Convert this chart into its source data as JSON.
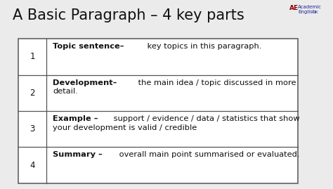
{
  "title": "A Basic Paragraph – 4 key parts",
  "title_fontsize": 15,
  "background_color": "#ebebeb",
  "table_bg": "#ffffff",
  "border_color": "#555555",
  "text_color": "#111111",
  "rows": [
    {
      "num": "1",
      "bold_part": "Topic sentence",
      "dash": "–",
      "rest": " key topics in this paragraph.",
      "rest2": ""
    },
    {
      "num": "2",
      "bold_part": "Development",
      "dash": "–",
      "rest": " the main idea / topic discussed in more",
      "rest2": "detail."
    },
    {
      "num": "3",
      "bold_part": "Example",
      "dash": " –",
      "rest": " support / evidence / data / statistics that show",
      "rest2": "your development is valid / credible"
    },
    {
      "num": "4",
      "bold_part": "Summary",
      "dash": " –",
      "rest": " overall main point summarised or evaluated.",
      "rest2": ""
    }
  ],
  "font_size": 8.2,
  "num_font_size": 8.5
}
